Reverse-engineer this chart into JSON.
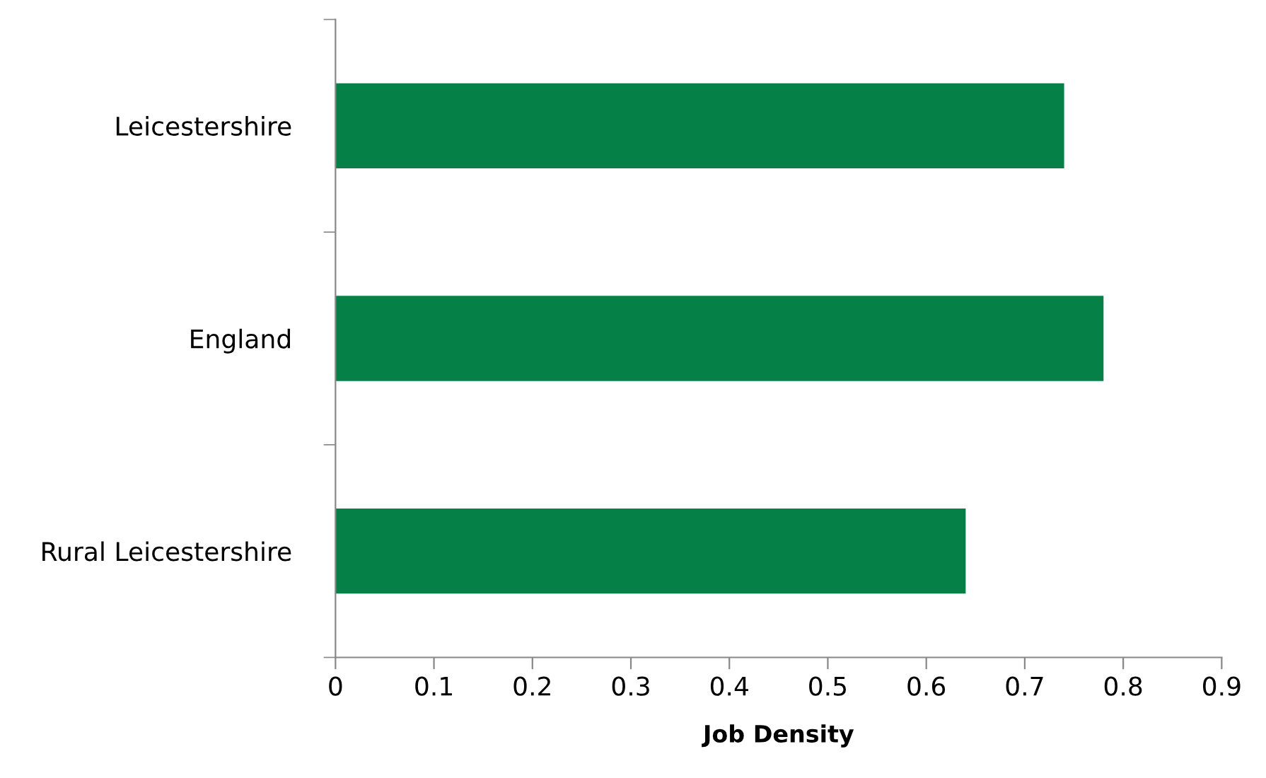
{
  "chart_data": {
    "type": "bar",
    "orientation": "horizontal",
    "xlabel": "Job Density",
    "categories": [
      "Leicestershire",
      "England",
      "Rural Leicestershire"
    ],
    "values": [
      0.74,
      0.78,
      0.64
    ],
    "color": "#058047",
    "xlim": [
      0,
      0.9
    ],
    "xticks": [
      0,
      0.1,
      0.2,
      0.3,
      0.4,
      0.5,
      0.6,
      0.7,
      0.8,
      0.9
    ],
    "grid": false,
    "legend": false
  }
}
